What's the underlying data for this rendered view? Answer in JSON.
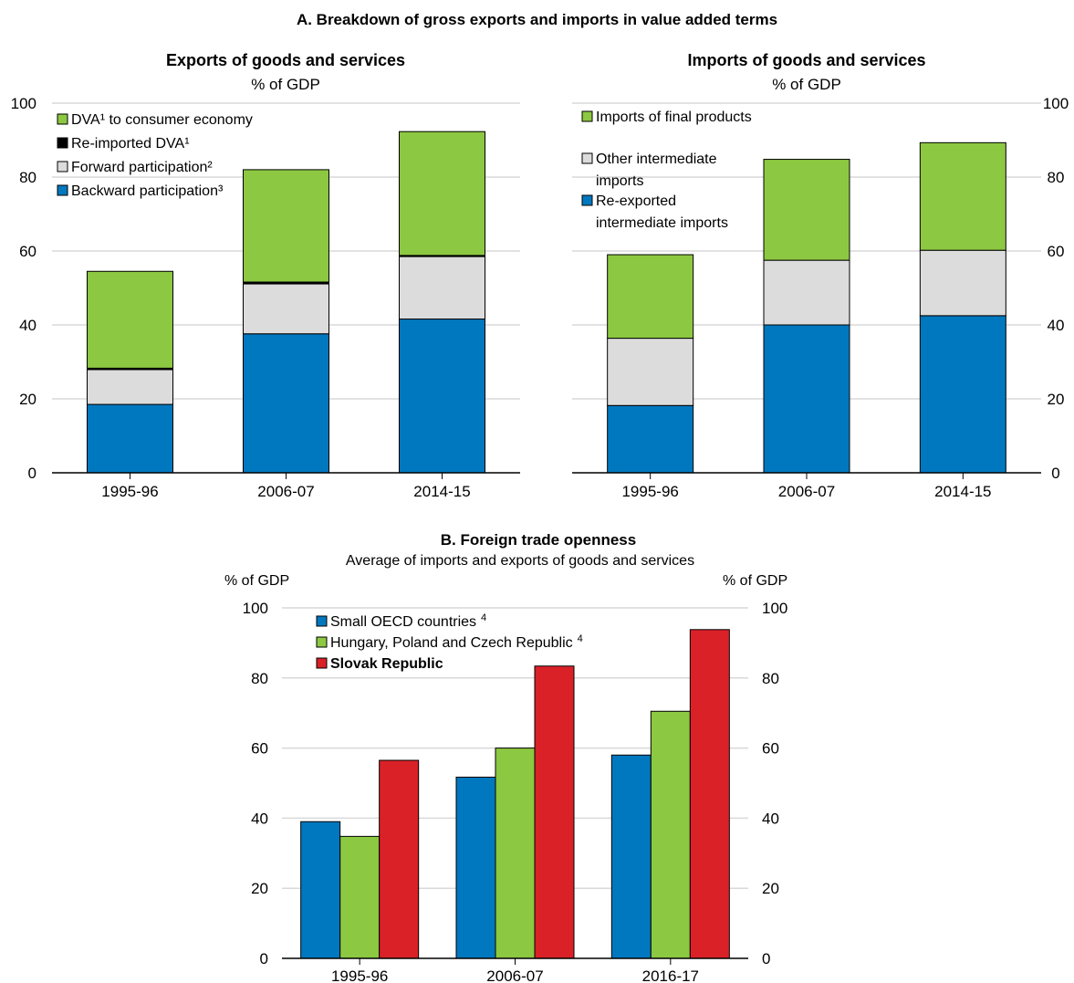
{
  "section_a": {
    "title": "A. Breakdown of gross exports and imports in value added terms"
  },
  "section_b": {
    "title": "B.  Foreign trade openness",
    "subtitle": "Average of imports and exports of goods and services"
  },
  "colors": {
    "blue": "#0078BF",
    "green": "#8CC841",
    "grey": "#DCDCDC",
    "black": "#000000",
    "red": "#DA2128",
    "axis": "#000000",
    "grid": "#D9D9D9"
  },
  "chart_data": [
    {
      "type": "bar",
      "stacked": true,
      "title": "Exports of goods and services",
      "subtitle": "% of GDP",
      "ylabel": "",
      "ylim": [
        0,
        100
      ],
      "yticks": [
        0,
        20,
        40,
        60,
        80,
        100
      ],
      "yaxis_side": "left",
      "grid": true,
      "legend_position": "top-left",
      "categories": [
        "1995-96",
        "2006-07",
        "2014-15"
      ],
      "series": [
        {
          "name": "Backward participation³",
          "color": "#0078BF",
          "values": [
            18.5,
            37.6,
            41.6
          ]
        },
        {
          "name": "Forward participation²",
          "color": "#DCDCDC",
          "values": [
            9.4,
            13.5,
            16.9
          ]
        },
        {
          "name": "Re-imported DVA¹",
          "color": "#000000",
          "values": [
            0.4,
            0.5,
            0.3
          ]
        },
        {
          "name": "DVA¹ to consumer economy",
          "color": "#8CC841",
          "values": [
            26.2,
            30.4,
            33.5
          ]
        }
      ],
      "legend": [
        "DVA¹ to consumer economy",
        "Re-imported DVA¹",
        "Forward participation²",
        "Backward participation³"
      ]
    },
    {
      "type": "bar",
      "stacked": true,
      "title": "Imports of goods and services",
      "subtitle": "% of GDP",
      "ylabel": "",
      "ylim": [
        0,
        100
      ],
      "yticks": [
        0,
        20,
        40,
        60,
        80,
        100
      ],
      "yaxis_side": "right",
      "grid": true,
      "legend_position": "top-left",
      "categories": [
        "1995-96",
        "2006-07",
        "2014-15"
      ],
      "series": [
        {
          "name": "Re-exported intermediate imports",
          "color": "#0078BF",
          "values": [
            18.2,
            40.0,
            42.5
          ]
        },
        {
          "name": "Other intermediate imports",
          "color": "#DCDCDC",
          "values": [
            18.2,
            17.5,
            17.7
          ]
        },
        {
          "name": "Imports of final products",
          "color": "#8CC841",
          "values": [
            22.6,
            27.3,
            29.1
          ]
        }
      ],
      "legend": [
        "Imports of final products",
        "Other intermediate imports",
        "Re-exported intermediate imports"
      ]
    },
    {
      "type": "bar",
      "stacked": false,
      "title": "B.  Foreign trade openness",
      "subtitle": "Average of imports and exports of goods and services",
      "ylabel_left": "% of GDP",
      "ylabel_right": "% of GDP",
      "ylim": [
        0,
        100
      ],
      "yticks": [
        0,
        20,
        40,
        60,
        80,
        100
      ],
      "grid": true,
      "legend_position": "top-left",
      "categories": [
        "1995-96",
        "2006-07",
        "2016-17"
      ],
      "series": [
        {
          "name": "Small OECD countries",
          "superscript": "4",
          "color": "#0078BF",
          "values": [
            39.0,
            51.7,
            58.0
          ]
        },
        {
          "name": "Hungary, Poland and Czech Republic",
          "superscript": "4",
          "color": "#8CC841",
          "values": [
            34.8,
            60.0,
            70.5
          ]
        },
        {
          "name": "Slovak Republic",
          "superscript": "",
          "bold": true,
          "color": "#DA2128",
          "values": [
            56.5,
            83.4,
            93.8
          ]
        }
      ]
    }
  ]
}
